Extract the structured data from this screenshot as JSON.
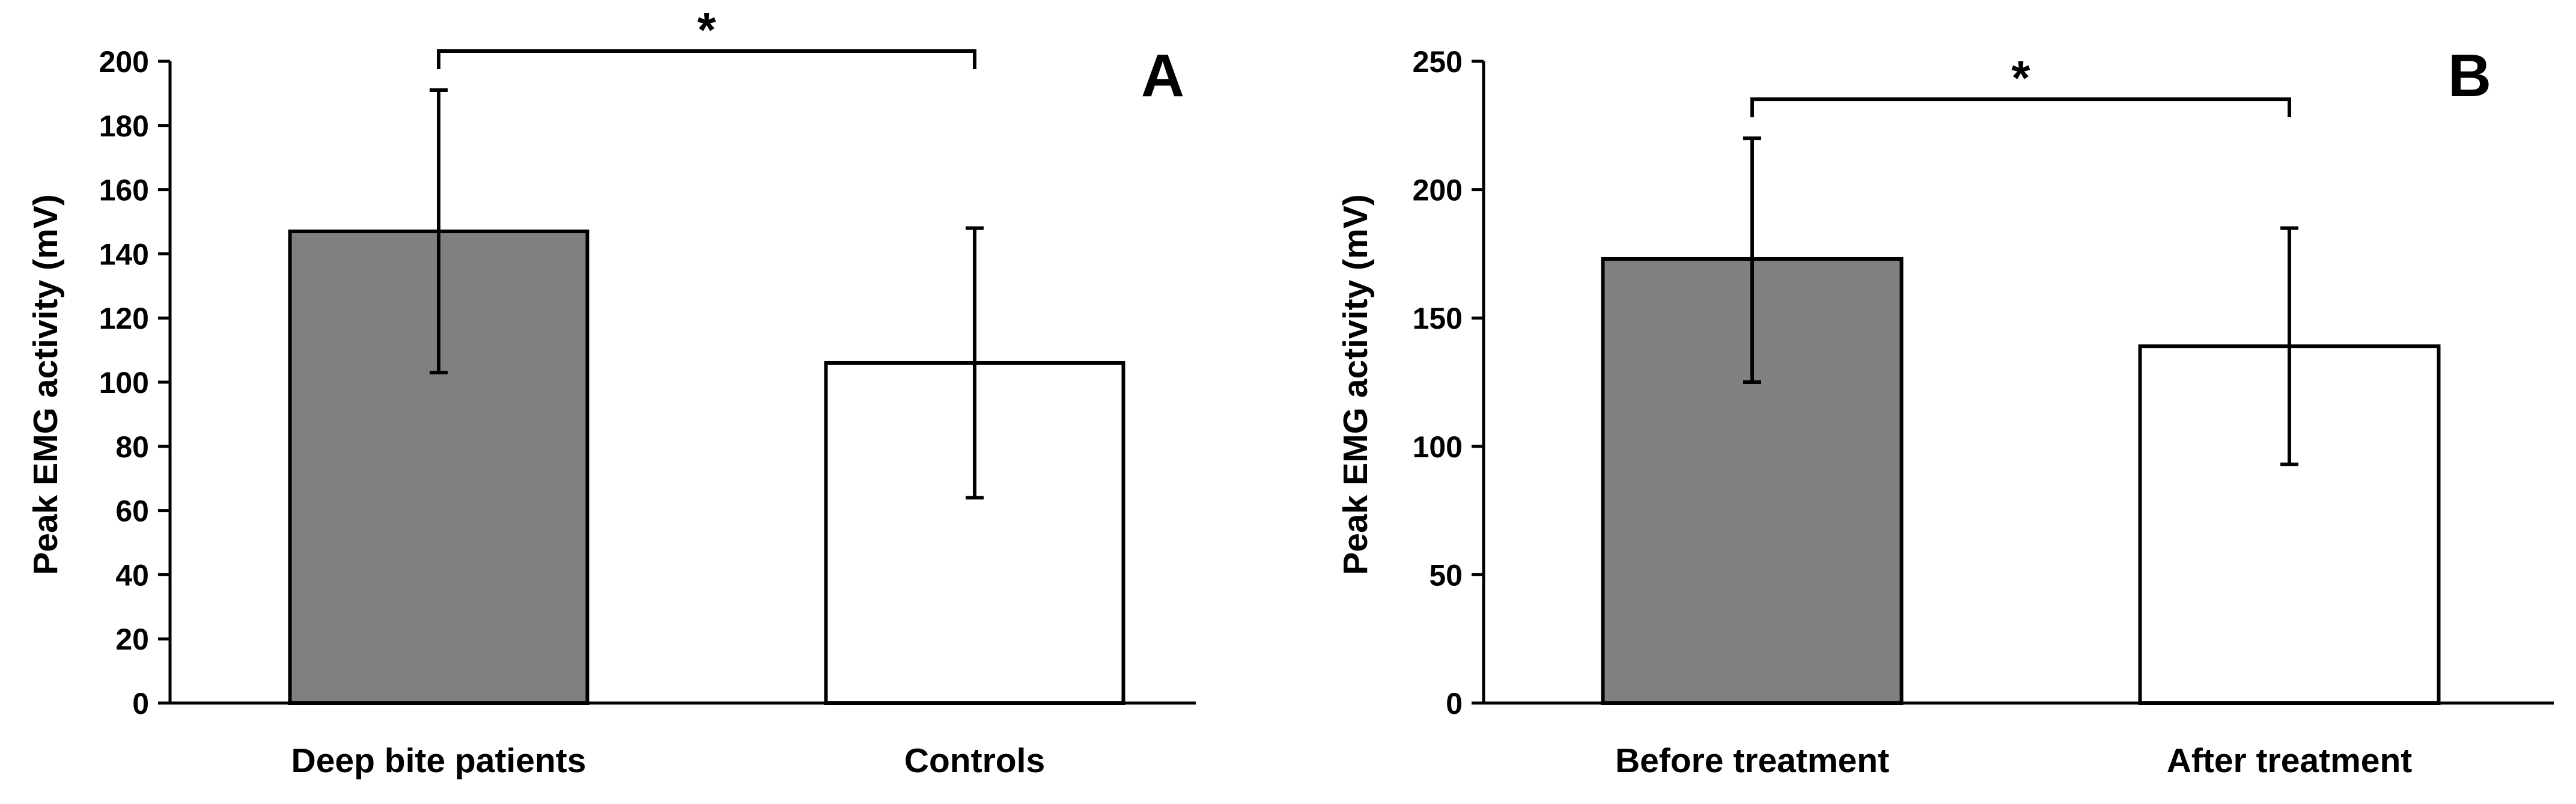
{
  "chart_data": [
    {
      "type": "bar",
      "panel": "A",
      "title": "",
      "xlabel": "",
      "ylabel": "Peak EMG activity (mV)",
      "ylim": [
        0,
        200
      ],
      "yticks": [
        0,
        20,
        40,
        60,
        80,
        100,
        120,
        140,
        160,
        180,
        200
      ],
      "categories": [
        "Deep bite patients",
        "Controls"
      ],
      "values": [
        147,
        106
      ],
      "error_low": [
        103,
        64
      ],
      "error_high": [
        191,
        148
      ],
      "bar_colors": [
        "#808080",
        "#ffffff"
      ],
      "significance": {
        "between": [
          0,
          1
        ],
        "label": "*"
      },
      "grid": false
    },
    {
      "type": "bar",
      "panel": "B",
      "title": "",
      "xlabel": "",
      "ylabel": "Peak EMG activity (mV)",
      "ylim": [
        0,
        250
      ],
      "yticks": [
        0,
        50,
        100,
        150,
        200,
        250
      ],
      "categories": [
        "Before treatment",
        "After treatment"
      ],
      "values": [
        173,
        139
      ],
      "error_low": [
        125,
        93
      ],
      "error_high": [
        220,
        185
      ],
      "bar_colors": [
        "#808080",
        "#ffffff"
      ],
      "significance": {
        "between": [
          0,
          1
        ],
        "label": "*"
      },
      "grid": false
    }
  ]
}
